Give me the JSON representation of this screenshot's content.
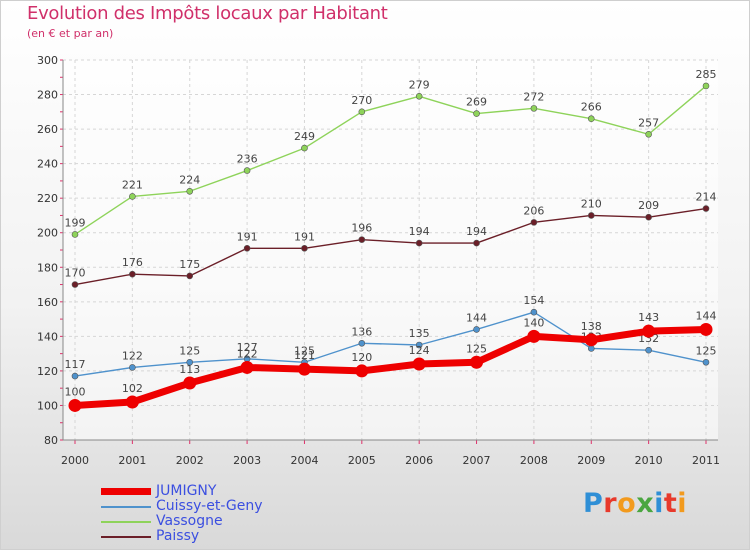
{
  "title": "Evolution des Impôts locaux par Habitant",
  "subtitle": "(en € et par an)",
  "logo": {
    "text": "Proxiti",
    "letter_colors": [
      "#2f8fd6",
      "#e8392b",
      "#f29a1d",
      "#4aa640",
      "#2f8fd6",
      "#e8392b",
      "#f29a1d"
    ]
  },
  "chart_data": {
    "type": "line",
    "x": [
      2000,
      2001,
      2002,
      2003,
      2004,
      2005,
      2006,
      2007,
      2008,
      2009,
      2010,
      2011
    ],
    "ylim": [
      80,
      300
    ],
    "yticks": [
      80,
      100,
      120,
      140,
      160,
      180,
      200,
      220,
      240,
      260,
      280,
      300
    ],
    "grid": true,
    "legend_position": "bottom-left",
    "series": [
      {
        "name": "JUMIGNY",
        "color": "#ee0000",
        "values": [
          100,
          102,
          113,
          122,
          121,
          120,
          124,
          125,
          140,
          138,
          143,
          144
        ]
      },
      {
        "name": "Cuissy-et-Geny",
        "color": "#4f92cc",
        "values": [
          117,
          122,
          125,
          127,
          125,
          136,
          135,
          144,
          154,
          133,
          132,
          125
        ]
      },
      {
        "name": "Vassogne",
        "color": "#8ed35a",
        "values": [
          199,
          221,
          224,
          236,
          249,
          270,
          279,
          269,
          272,
          266,
          257,
          285
        ]
      },
      {
        "name": "Paissy",
        "color": "#6b1f28",
        "values": [
          170,
          176,
          175,
          191,
          191,
          196,
          194,
          194,
          206,
          210,
          209,
          214
        ]
      }
    ]
  }
}
